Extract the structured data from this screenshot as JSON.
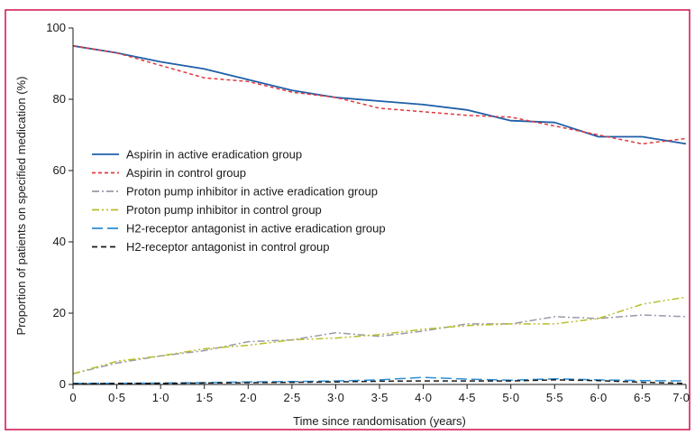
{
  "chart_data": {
    "type": "line",
    "xlabel": "Time since randomisation (years)",
    "ylabel": "Proportion of patients on specified medication (%)",
    "xlim": [
      0,
      7
    ],
    "ylim": [
      0,
      100
    ],
    "x_ticks": [
      "0",
      "0·5",
      "1·0",
      "1·5",
      "2·0",
      "2·5",
      "3·0",
      "3·5",
      "4·0",
      "4·5",
      "5·0",
      "5·5",
      "6·0",
      "6·5",
      "7·0"
    ],
    "y_ticks": [
      "0",
      "20",
      "40",
      "60",
      "80",
      "100"
    ],
    "grid": false,
    "legend_position": "middle-left",
    "frame_color": "#d0104c",
    "x": [
      0,
      0.5,
      1.0,
      1.5,
      2.0,
      2.5,
      3.0,
      3.5,
      4.0,
      4.5,
      5.0,
      5.5,
      6.0,
      6.5,
      7.0
    ],
    "series": [
      {
        "name": "Aspirin in active eradication group",
        "color": "#1f5fa8",
        "dash": "solid",
        "values": [
          95,
          93,
          90.5,
          88.5,
          85.5,
          82.5,
          80.5,
          79.5,
          78.5,
          77,
          74,
          73.5,
          69.5,
          69.5,
          67.5
        ]
      },
      {
        "name": "Aspirin in control group",
        "color": "#e0393e",
        "dash": "short-dash",
        "values": [
          95,
          93,
          89.5,
          86,
          85,
          82,
          80.5,
          77.5,
          76.5,
          75.5,
          75,
          72.5,
          70,
          67.5,
          69
        ]
      },
      {
        "name": "Proton pump inhibitor in active eradication group",
        "color": "#9a9aa8",
        "dash": "dash-dot",
        "values": [
          3,
          6,
          8,
          9.5,
          12,
          12.5,
          14.5,
          13.5,
          15,
          17,
          17,
          19,
          18.5,
          19.5,
          19
        ]
      },
      {
        "name": "Proton pump inhibitor in control group",
        "color": "#b8bf2a",
        "dash": "dash-dot-dot",
        "values": [
          3,
          6.5,
          8,
          10,
          11,
          12.5,
          13,
          14,
          15.5,
          16.5,
          17,
          17,
          18.5,
          22.5,
          24.5
        ]
      },
      {
        "name": "H2-receptor antagonist in active eradication group",
        "color": "#2b8fd6",
        "dash": "long-dash",
        "values": [
          0.3,
          0.3,
          0.4,
          0.5,
          0.7,
          0.8,
          1,
          1.3,
          2,
          1.5,
          1.2,
          1.6,
          1.3,
          1.1,
          1
        ]
      },
      {
        "name": "H2-receptor antagonist in control group",
        "color": "#1a1a1a",
        "dash": "dash",
        "values": [
          0.2,
          0.3,
          0.3,
          0.4,
          0.5,
          0.6,
          0.7,
          0.9,
          1,
          1,
          1,
          1.3,
          1.1,
          0.6,
          0.3
        ]
      }
    ]
  }
}
